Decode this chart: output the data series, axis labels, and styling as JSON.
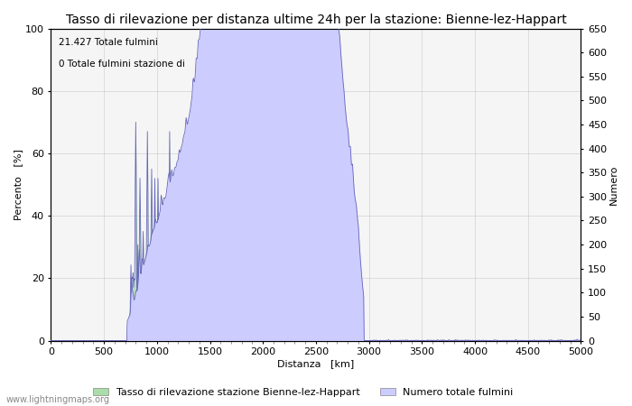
{
  "title": "Tasso di rilevazione per distanza ultime 24h per la stazione: Bienne-lez-Happart",
  "xlabel": "Distanza   [km]",
  "ylabel_left": "Percento   [%]",
  "ylabel_right": "Numero",
  "annotation_line1": "21.427 Totale fulmini",
  "annotation_line2": "0 Totale fulmini stazione di",
  "xlim": [
    0,
    5000
  ],
  "ylim_left": [
    0,
    100
  ],
  "ylim_right": [
    0,
    650
  ],
  "xticks": [
    0,
    500,
    1000,
    1500,
    2000,
    2500,
    3000,
    3500,
    4000,
    4500,
    5000
  ],
  "yticks_left": [
    0,
    20,
    40,
    60,
    80,
    100
  ],
  "yticks_right": [
    0,
    50,
    100,
    150,
    200,
    250,
    300,
    350,
    400,
    450,
    500,
    550,
    600,
    650
  ],
  "fill_green_color": "#aaddaa",
  "fill_blue_color": "#ccccff",
  "line_color": "#6666bb",
  "grid_color": "#aaaaaa",
  "background_color": "#f5f5f5",
  "watermark": "www.lightningmaps.org",
  "legend_label_green": "Tasso di rilevazione stazione Bienne-lez-Happart",
  "legend_label_blue": "Numero totale fulmini",
  "title_fontsize": 10,
  "label_fontsize": 8,
  "tick_fontsize": 8,
  "legend_fontsize": 8,
  "watermark_fontsize": 7,
  "figsize": [
    7.0,
    4.5
  ],
  "dpi": 100
}
